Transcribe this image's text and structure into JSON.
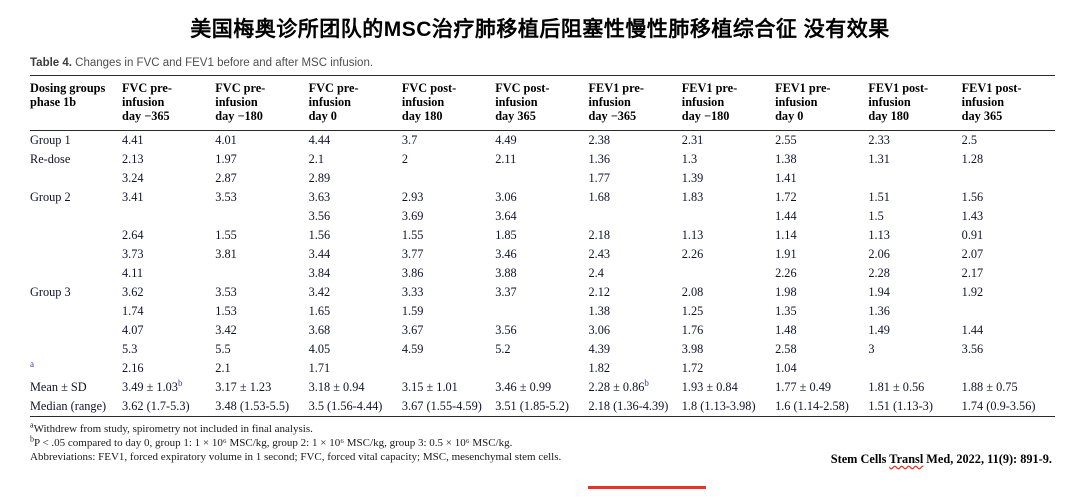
{
  "title": "美国梅奥诊所团队的MSC治疗肺移植后阻塞性慢性肺移植综合征 没有效果",
  "table": {
    "caption_label": "Table 4.",
    "caption_text": " Changes in FVC and FEV1 before and after MSC infusion.",
    "columns": [
      "Dosing groups\nphase 1b",
      "FVC pre-\ninfusion\nday −365",
      "FVC pre-\ninfusion\nday −180",
      "FVC pre-\ninfusion\nday 0",
      "FVC post-\ninfusion\nday 180",
      "FVC post-\ninfusion\nday 365",
      "FEV1 pre-\ninfusion\nday −365",
      "FEV1 pre-\ninfusion\nday −180",
      "FEV1 pre-\ninfusion\nday 0",
      "FEV1 post-\ninfusion\nday 180",
      "FEV1 post-\ninfusion\nday 365"
    ],
    "rows": [
      {
        "label": "Group 1",
        "cells": [
          "4.41",
          "4.01",
          "4.44",
          "3.7",
          "4.49",
          "2.38",
          "2.31",
          "2.55",
          "2.33",
          "2.5"
        ]
      },
      {
        "label": "Re-dose",
        "cells": [
          "2.13",
          "1.97",
          "2.1",
          "2",
          "2.11",
          "1.36",
          "1.3",
          "1.38",
          "1.31",
          "1.28"
        ]
      },
      {
        "label": "",
        "cells": [
          "3.24",
          "2.87",
          "2.89",
          "",
          "",
          "1.77",
          "1.39",
          "1.41",
          "",
          ""
        ]
      },
      {
        "label": "Group 2",
        "cells": [
          "3.41",
          "3.53",
          "3.63",
          "2.93",
          "3.06",
          "1.68",
          "1.83",
          "1.72",
          "1.51",
          "1.56"
        ]
      },
      {
        "label": "",
        "cells": [
          "",
          "",
          "3.56",
          "3.69",
          "3.64",
          "",
          "",
          "1.44",
          "1.5",
          "1.43"
        ]
      },
      {
        "label": "",
        "cells": [
          "2.64",
          "1.55",
          "1.56",
          "1.55",
          "1.85",
          "2.18",
          "1.13",
          "1.14",
          "1.13",
          "0.91"
        ]
      },
      {
        "label": "",
        "cells": [
          "3.73",
          "3.81",
          "3.44",
          "3.77",
          "3.46",
          "2.43",
          "2.26",
          "1.91",
          "2.06",
          "2.07"
        ]
      },
      {
        "label": "",
        "cells": [
          "4.11",
          "",
          "3.84",
          "3.86",
          "3.88",
          "2.4",
          "",
          "2.26",
          "2.28",
          "2.17"
        ]
      },
      {
        "label": "Group 3",
        "cells": [
          "3.62",
          "3.53",
          "3.42",
          "3.33",
          "3.37",
          "2.12",
          "2.08",
          "1.98",
          "1.94",
          "1.92"
        ]
      },
      {
        "label": "",
        "cells": [
          "1.74",
          "1.53",
          "1.65",
          "1.59",
          "",
          "1.38",
          "1.25",
          "1.35",
          "1.36",
          ""
        ]
      },
      {
        "label": "",
        "cells": [
          "4.07",
          "3.42",
          "3.68",
          "3.67",
          "3.56",
          "3.06",
          "1.76",
          "1.48",
          "1.49",
          "1.44"
        ]
      },
      {
        "label": "",
        "cells": [
          "5.3",
          "5.5",
          "4.05",
          "4.59",
          "5.2",
          "4.39",
          "3.98",
          "2.58",
          "3",
          "3.56"
        ]
      },
      {
        "label": "^a",
        "cells": [
          "2.16",
          "2.1",
          "1.71",
          "",
          "",
          "1.82",
          "1.72",
          "1.04",
          "",
          ""
        ]
      },
      {
        "label": "Mean ± SD",
        "cells": [
          "3.49 ± 1.03^b",
          "3.17 ± 1.23",
          "3.18 ± 0.94",
          "3.15 ± 1.01",
          "3.46 ± 0.99",
          "2.28 ± 0.86^b",
          "1.93 ± 0.84",
          "1.77 ± 0.49",
          "1.81 ± 0.56",
          "1.88 ± 0.75"
        ]
      },
      {
        "label": "Median (range)",
        "cells": [
          "3.62 (1.7-5.3)",
          "3.48 (1.53-5.5)",
          "3.5 (1.56-4.44)",
          "3.67 (1.55-4.59)",
          "3.51 (1.85-5.2)",
          "2.18 (1.36-4.39)",
          "1.8 (1.13-3.98)",
          "1.6 (1.14-2.58)",
          "1.51 (1.13-3)",
          "1.74 (0.9-3.56)"
        ]
      }
    ]
  },
  "footnotes": [
    {
      "sup": "a",
      "text": "Withdrew from study, spirometry not included in final analysis."
    },
    {
      "sup": "b",
      "text": "P < .05 compared to day 0, group 1: 1 × 10⁶ MSC/kg, group 2: 1 × 10⁶ MSC/kg, group 3: 0.5 × 10⁶ MSC/kg."
    },
    {
      "sup": "",
      "text": "Abbreviations: FEV1, forced expiratory volume in 1 second; FVC, forced vital capacity; MSC, mesenchymal stem cells."
    }
  ],
  "citation": {
    "pre": "Stem Cells ",
    "underlined": "Transl",
    "post": " Med, 2022, 11(9): 891-9."
  },
  "colors": {
    "accent_red": "#e8332a",
    "sup_blue": "#2a35c9",
    "rule": "#2b2b2b"
  }
}
